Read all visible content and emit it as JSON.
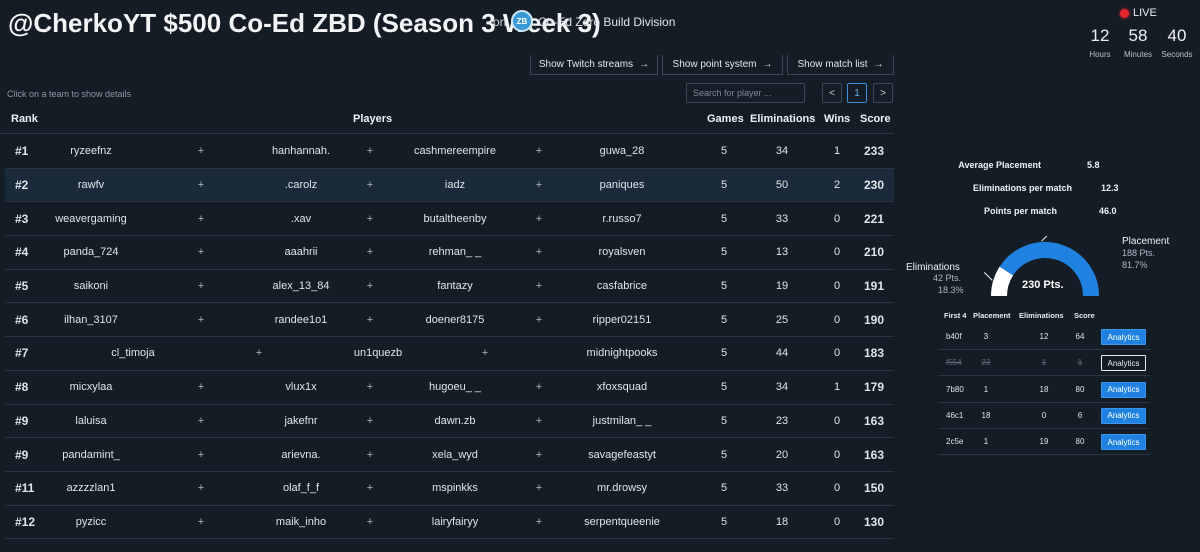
{
  "header": {
    "title": "@CherkoYT $500 Co-Ed ZBD (Season 3 Week 3)",
    "on_label": "on",
    "division_logo": "ZB",
    "division_name": "Co-Ed Zero Build Division"
  },
  "live": {
    "label": "LIVE",
    "countdown": [
      {
        "value": "12",
        "label": "Hours"
      },
      {
        "value": "58",
        "label": "Minutes"
      },
      {
        "value": "40",
        "label": "Seconds"
      }
    ]
  },
  "buttons": {
    "twitch": "Show Twitch streams",
    "points": "Show point system",
    "matches": "Show match list",
    "arrow": "→"
  },
  "hint": "Click on a team to show details",
  "search": {
    "placeholder": "Search for player ..."
  },
  "pagination": {
    "prev": "<",
    "page": "1",
    "next": ">"
  },
  "table": {
    "headers": {
      "rank": "Rank",
      "players": "Players",
      "games": "Games",
      "eliminations": "Eliminations",
      "wins": "Wins",
      "score": "Score"
    },
    "separator": "+",
    "rows": [
      {
        "rank": "#1",
        "players": [
          "ryzeefnz",
          "hanhannah.",
          "cashmereempire",
          "guwa_28"
        ],
        "games": "5",
        "elims": "34",
        "wins": "1",
        "score": "233"
      },
      {
        "rank": "#2",
        "players": [
          "rawfv",
          ".carolz",
          "iadz",
          "paniques"
        ],
        "games": "5",
        "elims": "50",
        "wins": "2",
        "score": "230"
      },
      {
        "rank": "#3",
        "players": [
          "weavergaming",
          ".xav",
          "butaltheenby",
          "r.russo7"
        ],
        "games": "5",
        "elims": "33",
        "wins": "0",
        "score": "221"
      },
      {
        "rank": "#4",
        "players": [
          "panda_724",
          "aaahrii",
          "rehman_ _",
          "royalsven"
        ],
        "games": "5",
        "elims": "13",
        "wins": "0",
        "score": "210"
      },
      {
        "rank": "#5",
        "players": [
          "saikoni",
          "alex_13_84",
          "fantazy",
          "casfabrice"
        ],
        "games": "5",
        "elims": "19",
        "wins": "0",
        "score": "191"
      },
      {
        "rank": "#6",
        "players": [
          "ilhan_3107",
          "randee1o1",
          "doener8175",
          "ripper02151"
        ],
        "games": "5",
        "elims": "25",
        "wins": "0",
        "score": "190"
      },
      {
        "rank": "#7",
        "players": [
          "cl_timoja",
          "un1quezb",
          "midnightpooks"
        ],
        "games": "5",
        "elims": "44",
        "wins": "0",
        "score": "183"
      },
      {
        "rank": "#8",
        "players": [
          "micxylaa",
          "vlux1x",
          "hugoeu_ _",
          "xfoxsquad"
        ],
        "games": "5",
        "elims": "34",
        "wins": "1",
        "score": "179"
      },
      {
        "rank": "#9",
        "players": [
          "laluisa",
          "jakefnr",
          "dawn.zb",
          "justmilan_ _"
        ],
        "games": "5",
        "elims": "23",
        "wins": "0",
        "score": "163"
      },
      {
        "rank": "#9",
        "players": [
          "pandamint_",
          "arievna.",
          "xela_wyd",
          "savagefeastyt"
        ],
        "games": "5",
        "elims": "20",
        "wins": "0",
        "score": "163"
      },
      {
        "rank": "#11",
        "players": [
          "azzzzlan1",
          "olaf_f_f",
          "mspinkks",
          "mr.drowsy"
        ],
        "games": "5",
        "elims": "33",
        "wins": "0",
        "score": "150"
      },
      {
        "rank": "#12",
        "players": [
          "pyzicc",
          "maik_inho",
          "lairyfairyy",
          "serpentqueenie"
        ],
        "games": "5",
        "elims": "18",
        "wins": "0",
        "score": "130"
      }
    ]
  },
  "details": {
    "stats": [
      {
        "label": "Average Placement",
        "value": "5.8"
      },
      {
        "label": "Eliminations per match",
        "value": "12.3"
      },
      {
        "label": "Points per match",
        "value": "46.0"
      }
    ],
    "gauge": {
      "total": "230 Pts.",
      "placement": {
        "label": "Placement",
        "points": "188 Pts.",
        "percent": "81.7%",
        "fraction": 0.817,
        "color": "#1f82e0"
      },
      "eliminations": {
        "label": "Eliminations",
        "points": "42 Pts.",
        "percent": "18.3%",
        "fraction": 0.183,
        "color": "#ffffff"
      }
    },
    "match_headers": {
      "code": "First 4",
      "placement": "Placement",
      "elims": "Eliminations",
      "score": "Score"
    },
    "matches": [
      {
        "code": "b40f",
        "placement": "3",
        "elims": "12",
        "score": "64",
        "action": "Analytics",
        "struck": false
      },
      {
        "code": "f554",
        "placement": "23",
        "elims": "1",
        "score": "1",
        "action": "Analytics",
        "struck": true
      },
      {
        "code": "7b80",
        "placement": "1",
        "elims": "18",
        "score": "80",
        "action": "Analytics",
        "struck": false
      },
      {
        "code": "46c1",
        "placement": "18",
        "elims": "0",
        "score": "6",
        "action": "Analytics",
        "struck": false
      },
      {
        "code": "2c5e",
        "placement": "1",
        "elims": "19",
        "score": "80",
        "action": "Analytics",
        "struck": false
      }
    ]
  }
}
